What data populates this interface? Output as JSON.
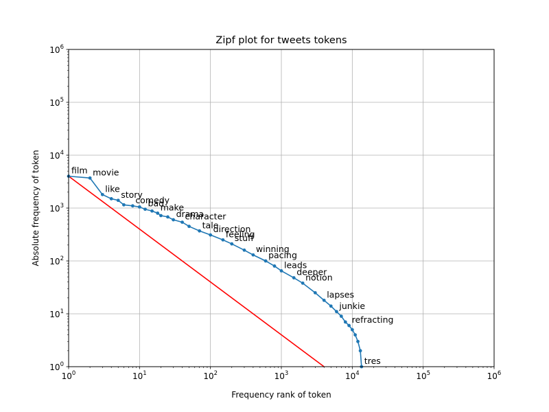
{
  "chart_data": {
    "type": "line",
    "title": "Zipf plot for tweets tokens",
    "xlabel": "Frequency rank of token",
    "ylabel": "Absolute frequency of token",
    "xscale": "log",
    "yscale": "log",
    "xlim": [
      1,
      1000000
    ],
    "ylim": [
      1,
      1000000
    ],
    "grid": true,
    "x_ticks": [
      {
        "base": "10",
        "exp": "0"
      },
      {
        "base": "10",
        "exp": "1"
      },
      {
        "base": "10",
        "exp": "2"
      },
      {
        "base": "10",
        "exp": "3"
      },
      {
        "base": "10",
        "exp": "4"
      },
      {
        "base": "10",
        "exp": "5"
      },
      {
        "base": "10",
        "exp": "6"
      }
    ],
    "y_ticks": [
      {
        "base": "10",
        "exp": "0"
      },
      {
        "base": "10",
        "exp": "1"
      },
      {
        "base": "10",
        "exp": "2"
      },
      {
        "base": "10",
        "exp": "3"
      },
      {
        "base": "10",
        "exp": "4"
      },
      {
        "base": "10",
        "exp": "5"
      },
      {
        "base": "10",
        "exp": "6"
      }
    ],
    "series": [
      {
        "color": "#1f77b4",
        "points": [
          [
            1,
            4000
          ],
          [
            2,
            3700
          ],
          [
            3,
            1800
          ],
          [
            4,
            1500
          ],
          [
            5,
            1400
          ],
          [
            6,
            1150
          ],
          [
            8,
            1100
          ],
          [
            10,
            1050
          ],
          [
            12,
            950
          ],
          [
            15,
            880
          ],
          [
            18,
            800
          ],
          [
            20,
            720
          ],
          [
            25,
            680
          ],
          [
            30,
            600
          ],
          [
            40,
            540
          ],
          [
            50,
            450
          ],
          [
            70,
            370
          ],
          [
            100,
            310
          ],
          [
            150,
            250
          ],
          [
            200,
            210
          ],
          [
            300,
            160
          ],
          [
            400,
            130
          ],
          [
            600,
            100
          ],
          [
            800,
            80
          ],
          [
            1000,
            65
          ],
          [
            1500,
            48
          ],
          [
            2000,
            38
          ],
          [
            3000,
            25
          ],
          [
            4000,
            18
          ],
          [
            5000,
            14
          ],
          [
            6000,
            11
          ],
          [
            7000,
            9
          ],
          [
            8000,
            7
          ],
          [
            9000,
            6
          ],
          [
            10000,
            5
          ],
          [
            11000,
            4
          ],
          [
            12000,
            3
          ],
          [
            13000,
            2
          ],
          [
            13500,
            1
          ]
        ]
      },
      {
        "color": "#ff0000",
        "points": [
          [
            1,
            4000
          ],
          [
            4000,
            1
          ]
        ]
      }
    ],
    "annotations": [
      {
        "text": "film",
        "x": 1,
        "y": 4000
      },
      {
        "text": "movie",
        "x": 2,
        "y": 3700
      },
      {
        "text": "like",
        "x": 3,
        "y": 1800
      },
      {
        "text": "story",
        "x": 5,
        "y": 1400
      },
      {
        "text": "comedy",
        "x": 8,
        "y": 1100
      },
      {
        "text": "bad",
        "x": 12,
        "y": 950
      },
      {
        "text": "make",
        "x": 18,
        "y": 800
      },
      {
        "text": "drama",
        "x": 30,
        "y": 600
      },
      {
        "text": "character",
        "x": 40,
        "y": 540
      },
      {
        "text": "tale",
        "x": 70,
        "y": 370
      },
      {
        "text": "direction",
        "x": 100,
        "y": 310
      },
      {
        "text": "feeling",
        "x": 150,
        "y": 250
      },
      {
        "text": "stuff",
        "x": 200,
        "y": 210
      },
      {
        "text": "winning",
        "x": 400,
        "y": 130
      },
      {
        "text": "pacing",
        "x": 600,
        "y": 100
      },
      {
        "text": "leads",
        "x": 1000,
        "y": 65
      },
      {
        "text": "deeper",
        "x": 1500,
        "y": 48
      },
      {
        "text": "notion",
        "x": 2000,
        "y": 38
      },
      {
        "text": "lapses",
        "x": 4000,
        "y": 18
      },
      {
        "text": "junkie",
        "x": 6000,
        "y": 11
      },
      {
        "text": "refracting",
        "x": 9000,
        "y": 6
      },
      {
        "text": "tres",
        "x": 13500,
        "y": 1
      }
    ]
  }
}
